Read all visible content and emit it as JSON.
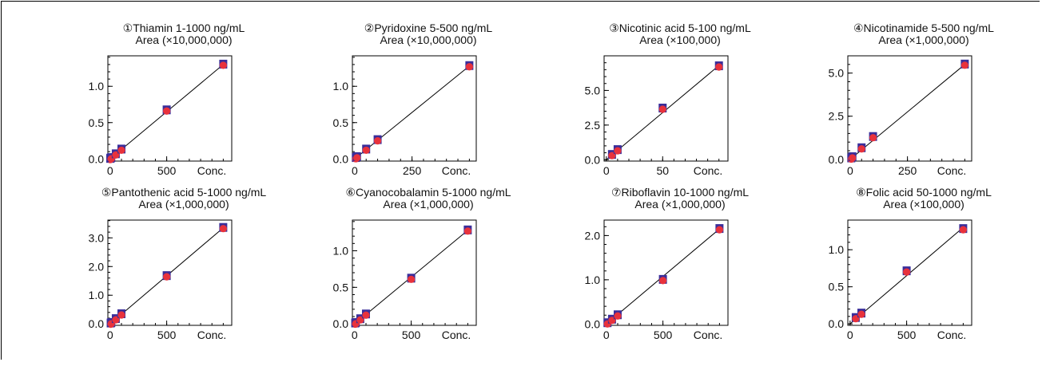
{
  "colors": {
    "marker_fill": "#e8323c",
    "marker_edge": "#3a2e9a",
    "line": "#000000",
    "axis": "#000000"
  },
  "chart_data": [
    {
      "type": "scatter",
      "title": "①Thiamin 1-1000 ng/mL",
      "ylabel": "Area (×10,000,000)",
      "xlabel": "Conc.",
      "xlim": [
        -20,
        1075
      ],
      "ylim": [
        -0.03,
        1.42
      ],
      "xticks": [
        {
          "v": 0,
          "label": "0"
        },
        {
          "v": 500,
          "label": "500"
        }
      ],
      "yticks": [
        {
          "v": 0,
          "label": "0.0"
        },
        {
          "v": 0.5,
          "label": "0.5"
        },
        {
          "v": 1.0,
          "label": "1.0"
        }
      ],
      "fit": {
        "x": [
          0,
          1000
        ],
        "y": [
          0,
          1.3
        ]
      },
      "points": {
        "x": [
          1,
          5,
          10,
          50,
          100,
          500,
          1000
        ],
        "y": [
          0.0013,
          0.0065,
          0.013,
          0.065,
          0.13,
          0.67,
          1.3
        ]
      }
    },
    {
      "type": "scatter",
      "title": "②Pyridoxine 5-500 ng/mL",
      "ylabel": "Area (×10,000,000)",
      "xlabel": "Conc.",
      "xlim": [
        -10,
        530
      ],
      "ylim": [
        -0.03,
        1.42
      ],
      "xticks": [
        {
          "v": 0,
          "label": "0"
        },
        {
          "v": 250,
          "label": "250"
        }
      ],
      "yticks": [
        {
          "v": 0,
          "label": "0.0"
        },
        {
          "v": 0.5,
          "label": "0.5"
        },
        {
          "v": 1.0,
          "label": "1.0"
        }
      ],
      "fit": {
        "x": [
          0,
          500
        ],
        "y": [
          0,
          1.28
        ]
      },
      "points": {
        "x": [
          5,
          10,
          50,
          100,
          500
        ],
        "y": [
          0.013,
          0.026,
          0.13,
          0.26,
          1.28
        ]
      }
    },
    {
      "type": "scatter",
      "title": "③Nicotinic acid 5-100 ng/mL",
      "ylabel": "Area (×100,000)",
      "xlabel": "Conc.",
      "xlim": [
        -2,
        108
      ],
      "ylim": [
        -0.1,
        7.5
      ],
      "xticks": [
        {
          "v": 0,
          "label": "0"
        },
        {
          "v": 50,
          "label": "50"
        }
      ],
      "yticks": [
        {
          "v": 0,
          "label": "0.0"
        },
        {
          "v": 2.5,
          "label": "2.5"
        },
        {
          "v": 5,
          "label": "5.0"
        }
      ],
      "fit": {
        "x": [
          0,
          100
        ],
        "y": [
          0,
          6.8
        ]
      },
      "points": {
        "x": [
          5,
          10,
          50,
          100
        ],
        "y": [
          0.35,
          0.7,
          3.7,
          6.75
        ]
      }
    },
    {
      "type": "scatter",
      "title": "④Nicotinamide 5-500 ng/mL",
      "ylabel": "Area (×1,000,000)",
      "xlabel": "Conc.",
      "xlim": [
        -10,
        530
      ],
      "ylim": [
        -0.1,
        6.0
      ],
      "xticks": [
        {
          "v": 0,
          "label": "0"
        },
        {
          "v": 250,
          "label": "250"
        }
      ],
      "yticks": [
        {
          "v": 0,
          "label": "0.0"
        },
        {
          "v": 2.5,
          "label": "2.5"
        },
        {
          "v": 5,
          "label": "5.0"
        }
      ],
      "fit": {
        "x": [
          0,
          500
        ],
        "y": [
          0,
          5.5
        ]
      },
      "points": {
        "x": [
          5,
          10,
          50,
          100,
          500
        ],
        "y": [
          0.06,
          0.13,
          0.65,
          1.3,
          5.5
        ]
      }
    },
    {
      "type": "scatter",
      "title": "⑤Pantothenic acid 5-1000 ng/mL",
      "ylabel": "Area (×1,000,000)",
      "xlabel": "Conc.",
      "xlim": [
        -20,
        1075
      ],
      "ylim": [
        -0.05,
        3.62
      ],
      "xticks": [
        {
          "v": 0,
          "label": "0"
        },
        {
          "v": 500,
          "label": "500"
        }
      ],
      "yticks": [
        {
          "v": 0,
          "label": "0.0"
        },
        {
          "v": 1,
          "label": "1.0"
        },
        {
          "v": 2,
          "label": "2.0"
        },
        {
          "v": 3,
          "label": "3.0"
        }
      ],
      "fit": {
        "x": [
          0,
          1000
        ],
        "y": [
          0,
          3.35
        ]
      },
      "points": {
        "x": [
          5,
          10,
          50,
          100,
          500,
          1000
        ],
        "y": [
          0.017,
          0.034,
          0.17,
          0.34,
          1.67,
          3.35
        ]
      }
    },
    {
      "type": "scatter",
      "title": "⑥Cyanocobalamin 5-1000 ng/mL",
      "ylabel": "Area (×1,000,000)",
      "xlabel": "Conc.",
      "xlim": [
        -20,
        1075
      ],
      "ylim": [
        -0.02,
        1.42
      ],
      "xticks": [
        {
          "v": 0,
          "label": "0"
        },
        {
          "v": 500,
          "label": "500"
        }
      ],
      "yticks": [
        {
          "v": 0,
          "label": "0.0"
        },
        {
          "v": 0.5,
          "label": "0.5"
        },
        {
          "v": 1.0,
          "label": "1.0"
        }
      ],
      "fit": {
        "x": [
          0,
          1000
        ],
        "y": [
          0,
          1.28
        ]
      },
      "points": {
        "x": [
          5,
          10,
          50,
          100,
          500,
          1000
        ],
        "y": [
          0.0065,
          0.013,
          0.065,
          0.13,
          0.62,
          1.28
        ]
      }
    },
    {
      "type": "scatter",
      "title": "⑦Riboflavin 10-1000 ng/mL",
      "ylabel": "Area (×1,000,000)",
      "xlabel": "Conc.",
      "xlim": [
        -20,
        1075
      ],
      "ylim": [
        -0.03,
        2.35
      ],
      "xticks": [
        {
          "v": 0,
          "label": "0"
        },
        {
          "v": 500,
          "label": "500"
        }
      ],
      "yticks": [
        {
          "v": 0,
          "label": "0.0"
        },
        {
          "v": 1,
          "label": "1.0"
        },
        {
          "v": 2,
          "label": "2.0"
        }
      ],
      "fit": {
        "x": [
          0,
          1000
        ],
        "y": [
          0,
          2.15
        ]
      },
      "points": {
        "x": [
          10,
          50,
          100,
          500,
          1000
        ],
        "y": [
          0.02,
          0.1,
          0.2,
          1.0,
          2.15
        ]
      }
    },
    {
      "type": "scatter",
      "title": "⑧Folic acid 50-1000 ng/mL",
      "ylabel": "Area (×100,000)",
      "xlabel": "Conc.",
      "xlim": [
        -20,
        1075
      ],
      "ylim": [
        -0.02,
        1.4
      ],
      "xticks": [
        {
          "v": 0,
          "label": "0"
        },
        {
          "v": 500,
          "label": "500"
        }
      ],
      "yticks": [
        {
          "v": 0,
          "label": "0.0"
        },
        {
          "v": 0.5,
          "label": "0.5"
        },
        {
          "v": 1.0,
          "label": "1.0"
        }
      ],
      "fit": {
        "x": [
          0,
          1000
        ],
        "y": [
          0,
          1.3
        ]
      },
      "points": {
        "x": [
          50,
          100,
          500,
          1000
        ],
        "y": [
          0.08,
          0.14,
          0.71,
          1.28
        ]
      }
    }
  ]
}
